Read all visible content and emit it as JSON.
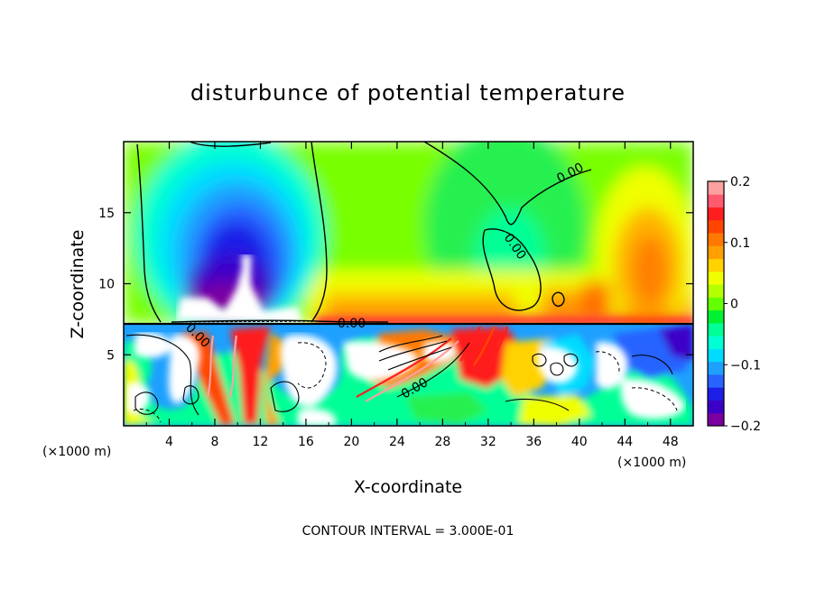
{
  "chart_data": {
    "type": "heatmap",
    "title": "disturbunce of potential temperature",
    "xlabel": "X-coordinate",
    "ylabel": "Z-coordinate",
    "x_unit_left": "(×1000 m)",
    "x_unit_right": "(×1000 m)",
    "footer": "CONTOUR INTERVAL = 3.000E-01",
    "xlim": [
      0,
      50
    ],
    "ylim": [
      0,
      20
    ],
    "xticks": [
      4,
      8,
      12,
      16,
      20,
      24,
      28,
      32,
      36,
      40,
      44,
      48
    ],
    "xtick_labels": [
      "4",
      "8",
      "12",
      "16",
      "20",
      "24",
      "28",
      "32",
      "36",
      "40",
      "44",
      "48"
    ],
    "yticks": [
      5,
      10,
      15
    ],
    "ytick_labels": [
      "5",
      "10",
      "15"
    ],
    "colorbar": {
      "min": -0.2,
      "max": 0.2,
      "ticks": [
        0.2,
        0.1,
        0,
        -0.1,
        -0.2
      ],
      "tick_labels": [
        "0.2",
        "0.1",
        "0",
        "−0.1",
        "−0.2"
      ],
      "colors": [
        "#7a00a0",
        "#3c00c8",
        "#1e1ee6",
        "#2864ff",
        "#1ea0ff",
        "#00dcff",
        "#00ffd2",
        "#00ff96",
        "#00f032",
        "#64ff00",
        "#b4ff00",
        "#f0ff00",
        "#ffd200",
        "#ffa000",
        "#ff7800",
        "#ff4600",
        "#ff1e1e",
        "#ff5a6e",
        "#ffa0a0"
      ]
    },
    "contour_labels": [
      "0.00",
      "0.00",
      "0.00",
      "0.00",
      "0.00"
    ],
    "boundary_z": 7.2
  }
}
